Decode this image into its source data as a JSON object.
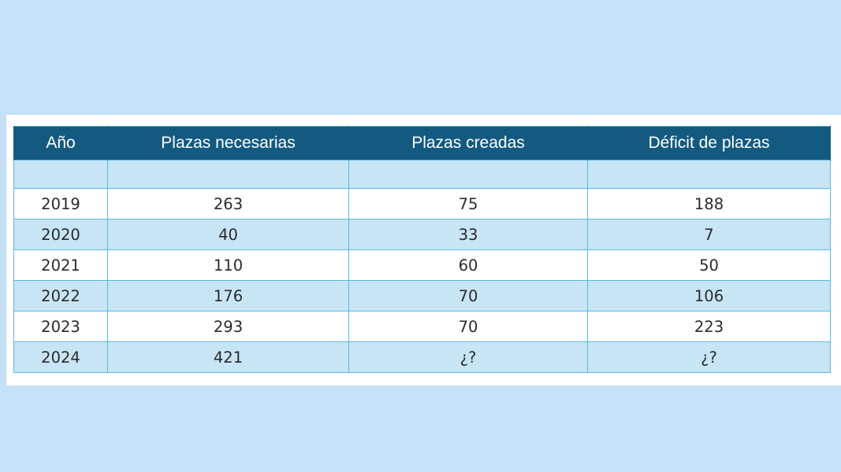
{
  "table": {
    "headers": [
      "Año",
      "Plazas necesarias",
      "Plazas creadas",
      "Déficit de plazas"
    ],
    "rows": [
      [
        "2019",
        "263",
        "75",
        "188"
      ],
      [
        "2020",
        "40",
        "33",
        "7"
      ],
      [
        "2021",
        "110",
        "60",
        "50"
      ],
      [
        "2022",
        "176",
        "70",
        "106"
      ],
      [
        "2023",
        "293",
        "70",
        "223"
      ],
      [
        "2024",
        "421",
        "¿?",
        "¿?"
      ]
    ]
  },
  "colors": {
    "page_background": "#c5e1f5",
    "header_background": "#145a80",
    "header_text": "#ffffff",
    "row_alt_background": "#c8e5f6",
    "grid_line": "#5ab8e2"
  }
}
